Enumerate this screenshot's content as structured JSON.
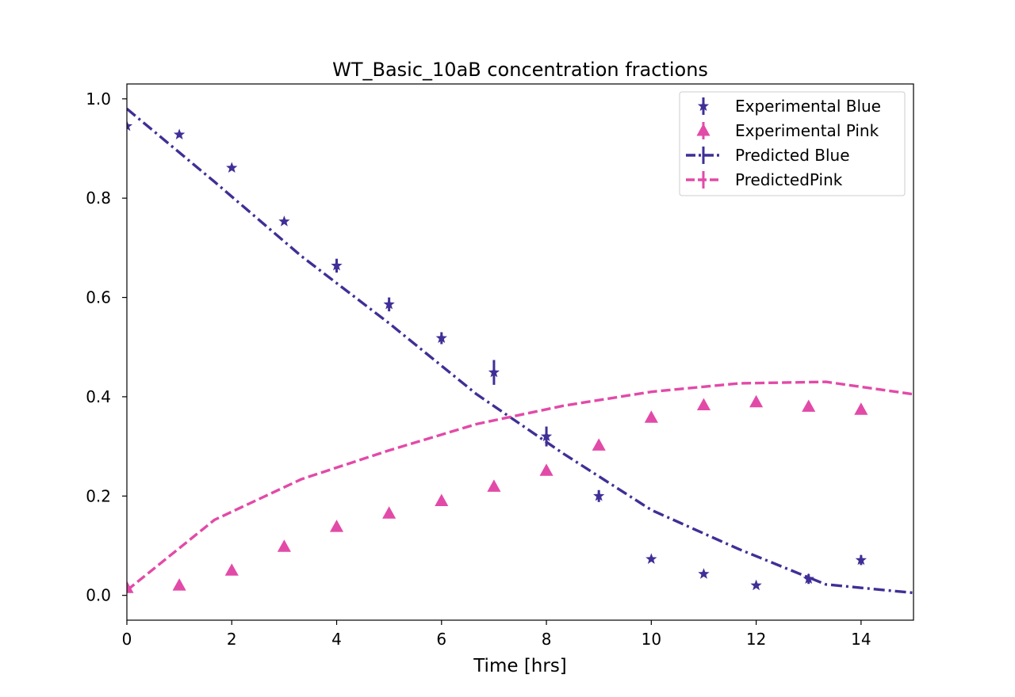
{
  "chart_data": {
    "type": "line",
    "title": "WT_Basic_10aB concentration fractions",
    "xlabel": "Time [hrs]",
    "ylabel": "",
    "xlim": [
      0,
      15
    ],
    "ylim": [
      -0.05,
      1.03
    ],
    "xticks": [
      0,
      2,
      4,
      6,
      8,
      10,
      12,
      14
    ],
    "yticks": [
      0.0,
      0.2,
      0.4,
      0.6,
      0.8,
      1.0
    ],
    "grid": false,
    "legend_position": "top-right",
    "series": [
      {
        "name": "Experimental Blue",
        "kind": "scatter",
        "marker": "star",
        "color": "#3f2f96",
        "x": [
          0,
          1,
          2,
          3,
          4,
          5,
          6,
          7,
          8,
          9,
          10,
          11,
          12,
          13,
          14
        ],
        "y": [
          0.945,
          0.928,
          0.861,
          0.753,
          0.664,
          0.586,
          0.518,
          0.449,
          0.32,
          0.2,
          0.073,
          0.043,
          0.02,
          0.033,
          0.071
        ],
        "yerr": [
          0.0,
          0.0,
          0.0,
          0.0,
          0.014,
          0.014,
          0.012,
          0.025,
          0.02,
          0.012,
          0.0,
          0.0,
          0.0,
          0.01,
          0.01
        ]
      },
      {
        "name": "Experimental Pink",
        "kind": "scatter",
        "marker": "triangle",
        "color": "#e24aa8",
        "x": [
          0,
          1,
          2,
          3,
          4,
          5,
          6,
          7,
          8,
          9,
          10,
          11,
          12,
          13,
          14
        ],
        "y": [
          0.015,
          0.02,
          0.05,
          0.098,
          0.138,
          0.165,
          0.19,
          0.219,
          0.251,
          0.302,
          0.358,
          0.383,
          0.389,
          0.38,
          0.374
        ],
        "yerr": [
          0,
          0,
          0,
          0,
          0,
          0,
          0,
          0,
          0,
          0,
          0,
          0,
          0,
          0,
          0
        ]
      },
      {
        "name": "Predicted Blue",
        "kind": "line",
        "style": "dashdot",
        "color": "#3f2f96",
        "x": [
          0,
          1.67,
          3.33,
          5.0,
          6.67,
          8.33,
          10.0,
          11.67,
          13.33,
          15.0
        ],
        "y": [
          0.98,
          0.833,
          0.683,
          0.548,
          0.405,
          0.285,
          0.172,
          0.093,
          0.022,
          0.005
        ]
      },
      {
        "name": "PredictedPink",
        "kind": "line",
        "style": "dashed",
        "color": "#e24aa8",
        "x": [
          0,
          1.67,
          3.33,
          5.0,
          6.67,
          8.33,
          10.0,
          11.67,
          13.33,
          15.0
        ],
        "y": [
          0.01,
          0.152,
          0.234,
          0.292,
          0.345,
          0.382,
          0.41,
          0.427,
          0.43,
          0.405
        ]
      }
    ]
  }
}
